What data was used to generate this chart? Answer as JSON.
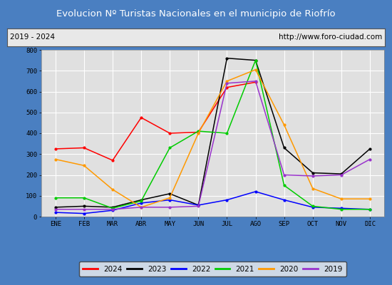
{
  "title": "Evolucion Nº Turistas Nacionales en el municipio de Riofrío",
  "title_bg": "#4a7fc1",
  "subtitle_left": "2019 - 2024",
  "subtitle_right": "http://www.foro-ciudad.com",
  "months": [
    "ENE",
    "FEB",
    "MAR",
    "ABR",
    "MAY",
    "JUN",
    "JUL",
    "AGO",
    "SEP",
    "OCT",
    "NOV",
    "DIC"
  ],
  "series": {
    "2024": {
      "color": "#ff0000",
      "values": [
        325,
        330,
        270,
        475,
        400,
        405,
        620,
        645,
        null,
        null,
        null,
        null
      ]
    },
    "2023": {
      "color": "#000000",
      "values": [
        45,
        50,
        45,
        80,
        110,
        55,
        760,
        750,
        330,
        210,
        205,
        325
      ]
    },
    "2022": {
      "color": "#0000ff",
      "values": [
        20,
        15,
        30,
        65,
        80,
        55,
        80,
        120,
        80,
        45,
        40,
        35
      ]
    },
    "2021": {
      "color": "#00cc00",
      "values": [
        90,
        90,
        40,
        75,
        330,
        410,
        400,
        750,
        150,
        50,
        35,
        35
      ]
    },
    "2020": {
      "color": "#ff9900",
      "values": [
        275,
        245,
        130,
        45,
        90,
        400,
        650,
        705,
        440,
        135,
        85,
        85
      ]
    },
    "2019": {
      "color": "#9933cc",
      "values": [
        35,
        35,
        35,
        45,
        45,
        50,
        640,
        650,
        200,
        195,
        200,
        275
      ]
    }
  },
  "ylim": [
    0,
    800
  ],
  "yticks": [
    0,
    100,
    200,
    300,
    400,
    500,
    600,
    700,
    800
  ],
  "plot_bg": "#e0e0e0",
  "grid_color": "#ffffff",
  "outer_bg": "#4a7fc1",
  "subtitle_bg": "#e8e8e8",
  "legend_bg": "#f0f0f0"
}
